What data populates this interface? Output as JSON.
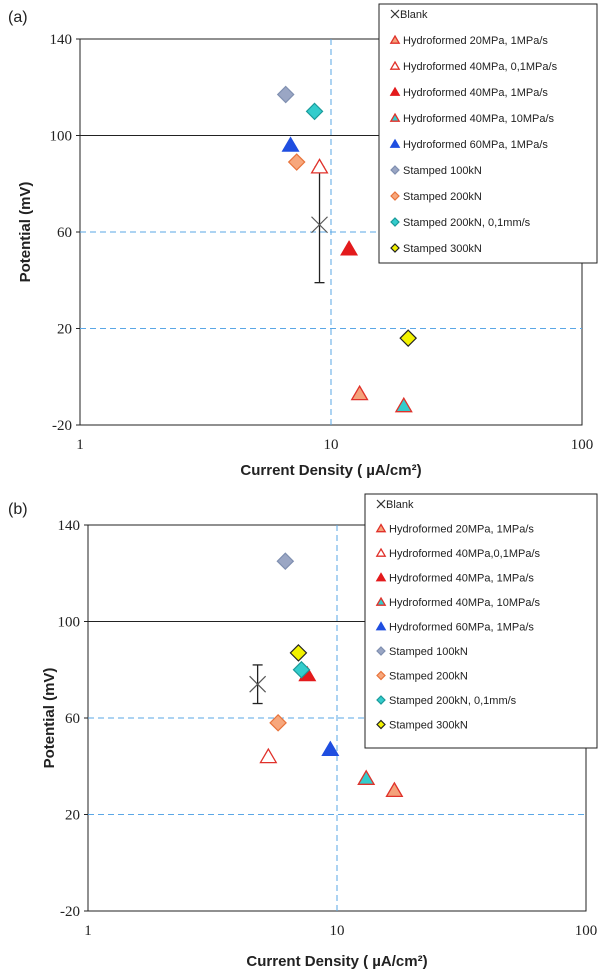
{
  "chart_data": [
    {
      "type": "scatter",
      "panel_label": "(a)",
      "xlabel": "Current Density ( µA/cm²)",
      "ylabel": "Potential (mV)",
      "x_scale": "log",
      "xlim": [
        1,
        100
      ],
      "ylim": [
        -20,
        140
      ],
      "x_ticks": [
        "1",
        "10",
        "100"
      ],
      "y_ticks": [
        "-20",
        "20",
        "60",
        "100",
        "140"
      ],
      "legend_position": "top-right",
      "reference_lines": {
        "x": 10,
        "y": [
          60,
          20
        ]
      },
      "series": [
        {
          "name": "Blank",
          "marker": "cross",
          "color": "#444444",
          "points": [
            [
              9.0,
              63
            ]
          ],
          "yerr": [
            24
          ]
        },
        {
          "name": "Hydroformed 20MPa,  1MPa/s",
          "marker": "triangle",
          "color": "#f4a27b",
          "edge": "#e0312a",
          "points": [
            [
              13.0,
              -7
            ]
          ]
        },
        {
          "name": "Hydroformed 40MPa,  0,1MPa/s",
          "marker": "triangle-open",
          "color": "#ffffff",
          "edge": "#e0312a",
          "points": [
            [
              9.0,
              87
            ]
          ]
        },
        {
          "name": "Hydroformed 40MPa,  1MPa/s",
          "marker": "triangle",
          "color": "#e31a1c",
          "edge": "#e31a1c",
          "points": [
            [
              11.8,
              53
            ]
          ]
        },
        {
          "name": "Hydroformed 40MPa,  10MPa/s",
          "marker": "triangle",
          "color": "#33cccc",
          "edge": "#e0312a",
          "points": [
            [
              19.5,
              -12
            ]
          ]
        },
        {
          "name": "Hydroformed 60MPa,  1MPa/s",
          "marker": "triangle",
          "color": "#1f4ee0",
          "edge": "#1f4ee0",
          "points": [
            [
              6.9,
              96
            ]
          ]
        },
        {
          "name": "Stamped 100kN",
          "marker": "diamond",
          "color": "#9aa6c4",
          "edge": "#7f8fb0",
          "points": [
            [
              6.6,
              117
            ]
          ]
        },
        {
          "name": "Stamped 200kN",
          "marker": "diamond",
          "color": "#f7a77c",
          "edge": "#e8733b",
          "points": [
            [
              7.3,
              89
            ]
          ]
        },
        {
          "name": "Stamped 200kN, 0,1mm/s",
          "marker": "diamond",
          "color": "#33cccc",
          "edge": "#1a9a9a",
          "points": [
            [
              8.6,
              110
            ]
          ]
        },
        {
          "name": "Stamped 300kN",
          "marker": "diamond",
          "color": "#f2f200",
          "edge": "#222222",
          "points": [
            [
              20.3,
              16
            ]
          ]
        }
      ]
    },
    {
      "type": "scatter",
      "panel_label": "(b)",
      "xlabel": "Current Density ( µA/cm²)",
      "ylabel": "Potential (mV)",
      "x_scale": "log",
      "xlim": [
        1,
        100
      ],
      "ylim": [
        -20,
        140
      ],
      "x_ticks": [
        "1",
        "10",
        "100"
      ],
      "y_ticks": [
        "-20",
        "20",
        "60",
        "100",
        "140"
      ],
      "legend_position": "top-right",
      "reference_lines": {
        "x": 10,
        "y": [
          60,
          20
        ]
      },
      "series": [
        {
          "name": "Blank",
          "marker": "cross",
          "color": "#444444",
          "points": [
            [
              4.8,
              74
            ]
          ],
          "yerr": [
            8
          ]
        },
        {
          "name": "Hydroformed 20MPa,  1MPa/s",
          "marker": "triangle",
          "color": "#f4a27b",
          "edge": "#e0312a",
          "points": [
            [
              17.0,
              30
            ]
          ]
        },
        {
          "name": "Hydroformed 40MPa,0,1MPa/s",
          "marker": "triangle-open",
          "color": "#ffffff",
          "edge": "#e0312a",
          "points": [
            [
              5.3,
              44
            ]
          ]
        },
        {
          "name": "Hydroformed 40MPa,  1MPa/s",
          "marker": "triangle",
          "color": "#e31a1c",
          "edge": "#e31a1c",
          "points": [
            [
              7.6,
              78
            ]
          ]
        },
        {
          "name": "Hydroformed 40MPa,  10MPa/s",
          "marker": "triangle",
          "color": "#33cccc",
          "edge": "#e0312a",
          "points": [
            [
              13.1,
              35
            ]
          ]
        },
        {
          "name": "Hydroformed 60MPa,  1MPa/s",
          "marker": "triangle",
          "color": "#1f4ee0",
          "edge": "#1f4ee0",
          "points": [
            [
              9.4,
              47
            ]
          ]
        },
        {
          "name": "Stamped  100kN",
          "marker": "diamond",
          "color": "#9aa6c4",
          "edge": "#7f8fb0",
          "points": [
            [
              6.2,
              125
            ]
          ]
        },
        {
          "name": "Stamped  200kN",
          "marker": "diamond",
          "color": "#f7a77c",
          "edge": "#e8733b",
          "points": [
            [
              5.8,
              58
            ]
          ]
        },
        {
          "name": "Stamped  200kN, 0,1mm/s",
          "marker": "diamond",
          "color": "#33cccc",
          "edge": "#1a9a9a",
          "points": [
            [
              7.2,
              80
            ]
          ]
        },
        {
          "name": "Stamped  300kN",
          "marker": "diamond",
          "color": "#f2f200",
          "edge": "#222222",
          "points": [
            [
              7.0,
              87
            ]
          ]
        }
      ]
    }
  ]
}
